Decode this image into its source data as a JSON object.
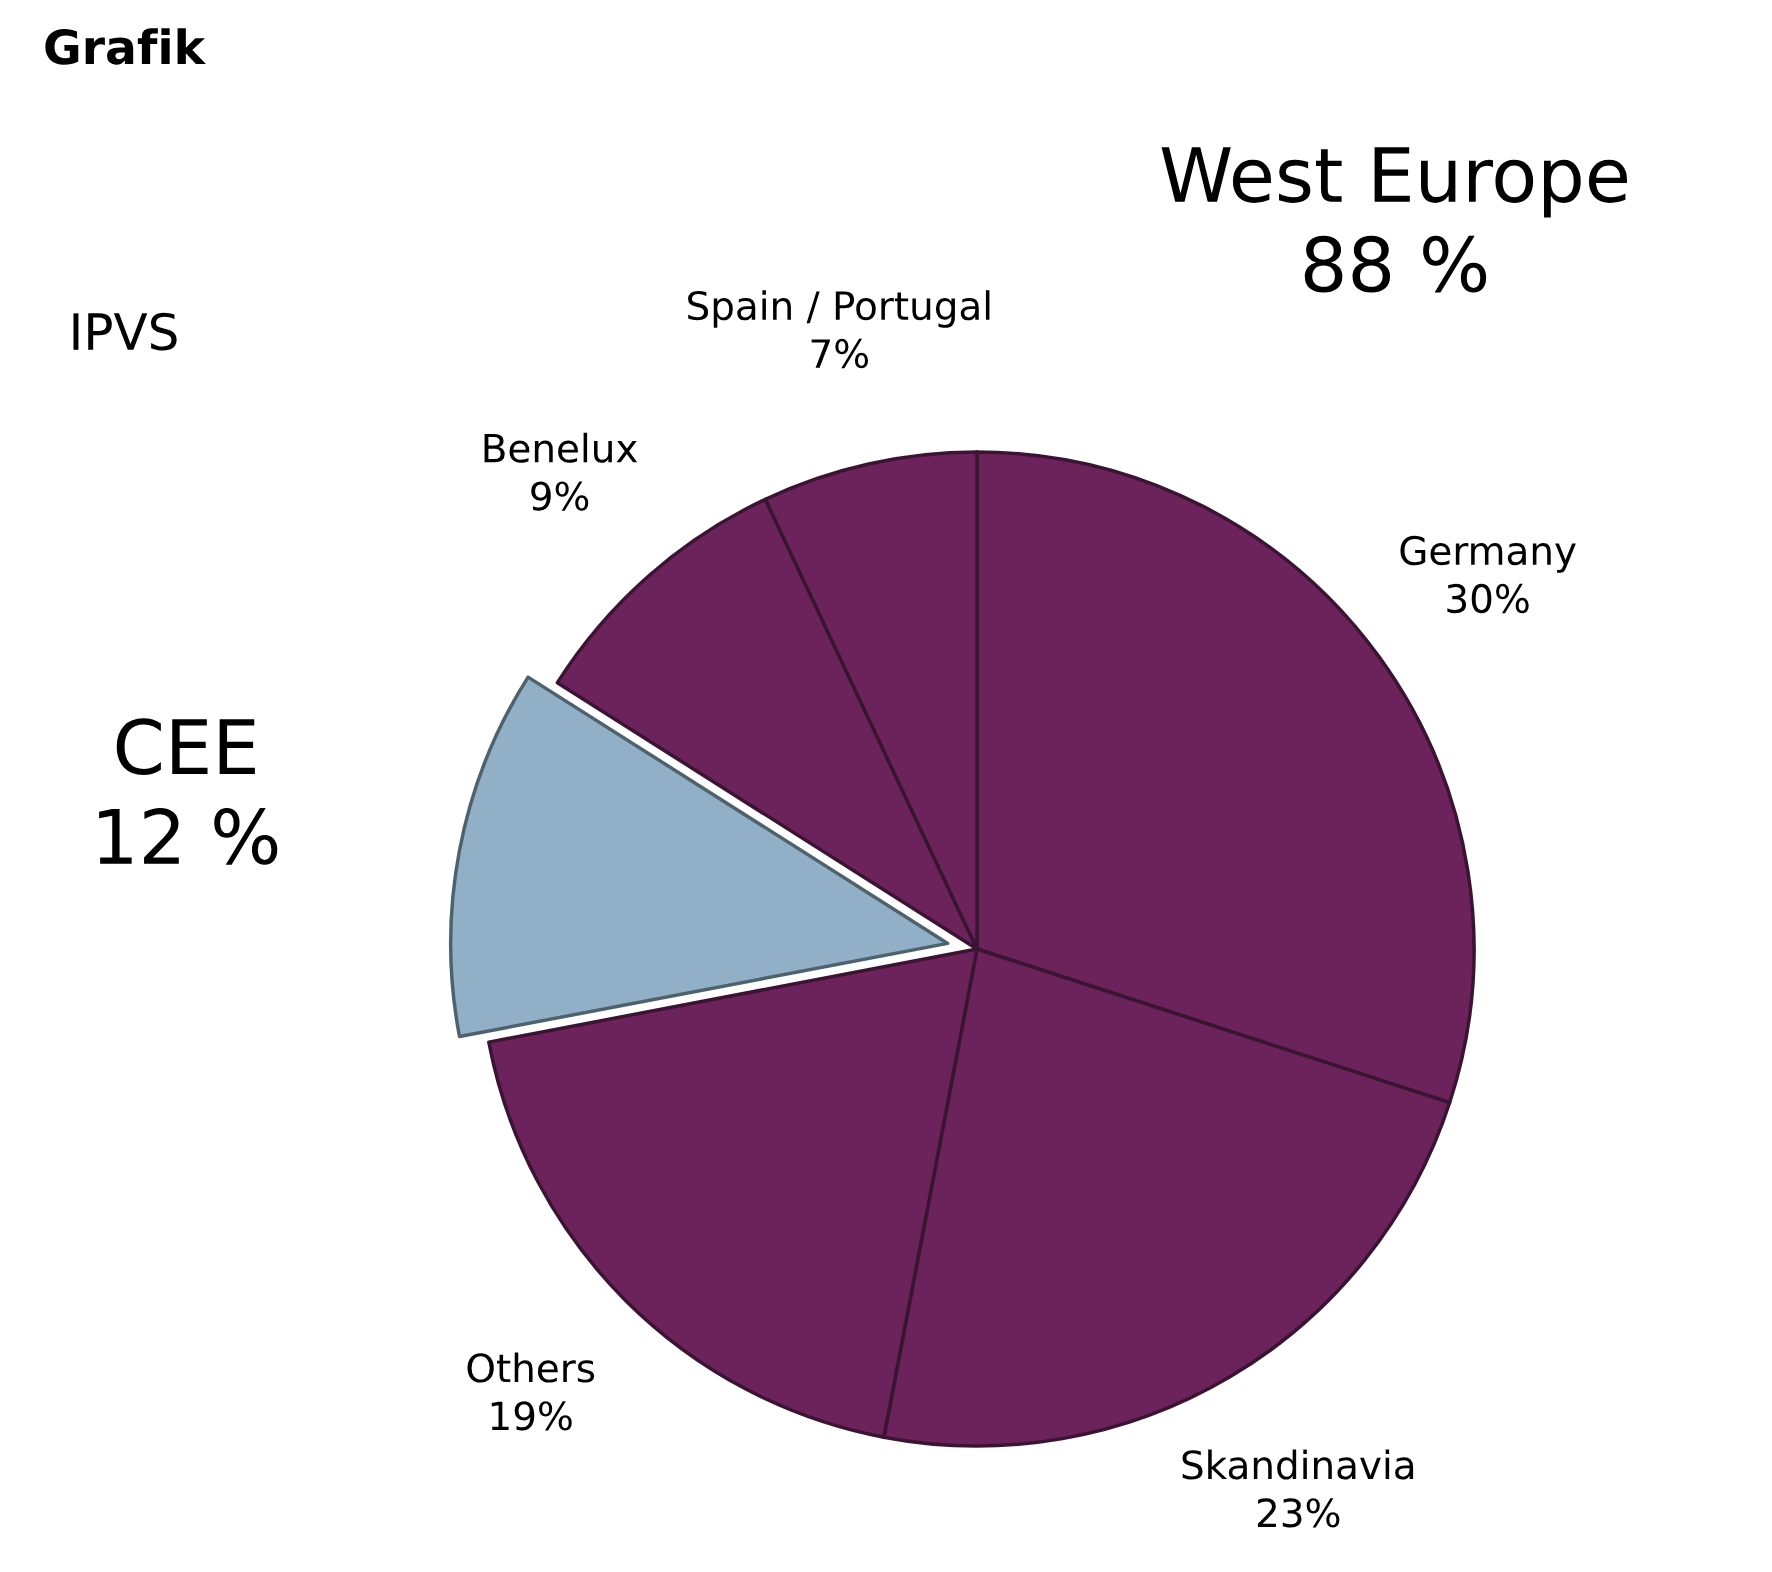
{
  "chart_data": {
    "type": "pie",
    "categories": [
      "Germany",
      "Skandinavia",
      "Others",
      "CEE",
      "Benelux",
      "Spain / Portugal"
    ],
    "values": [
      30,
      23,
      19,
      12,
      9,
      7
    ],
    "value_labels": [
      "30%",
      "23%",
      "19%",
      "12 %",
      "9%",
      "7%"
    ],
    "colors": [
      "#6c235c",
      "#6c235c",
      "#6c235c",
      "#91b0c8",
      "#6c235c",
      "#6c235c"
    ],
    "annotations": [
      "Grafik",
      "IPVS",
      "West Europe\n88 %"
    ]
  }
}
